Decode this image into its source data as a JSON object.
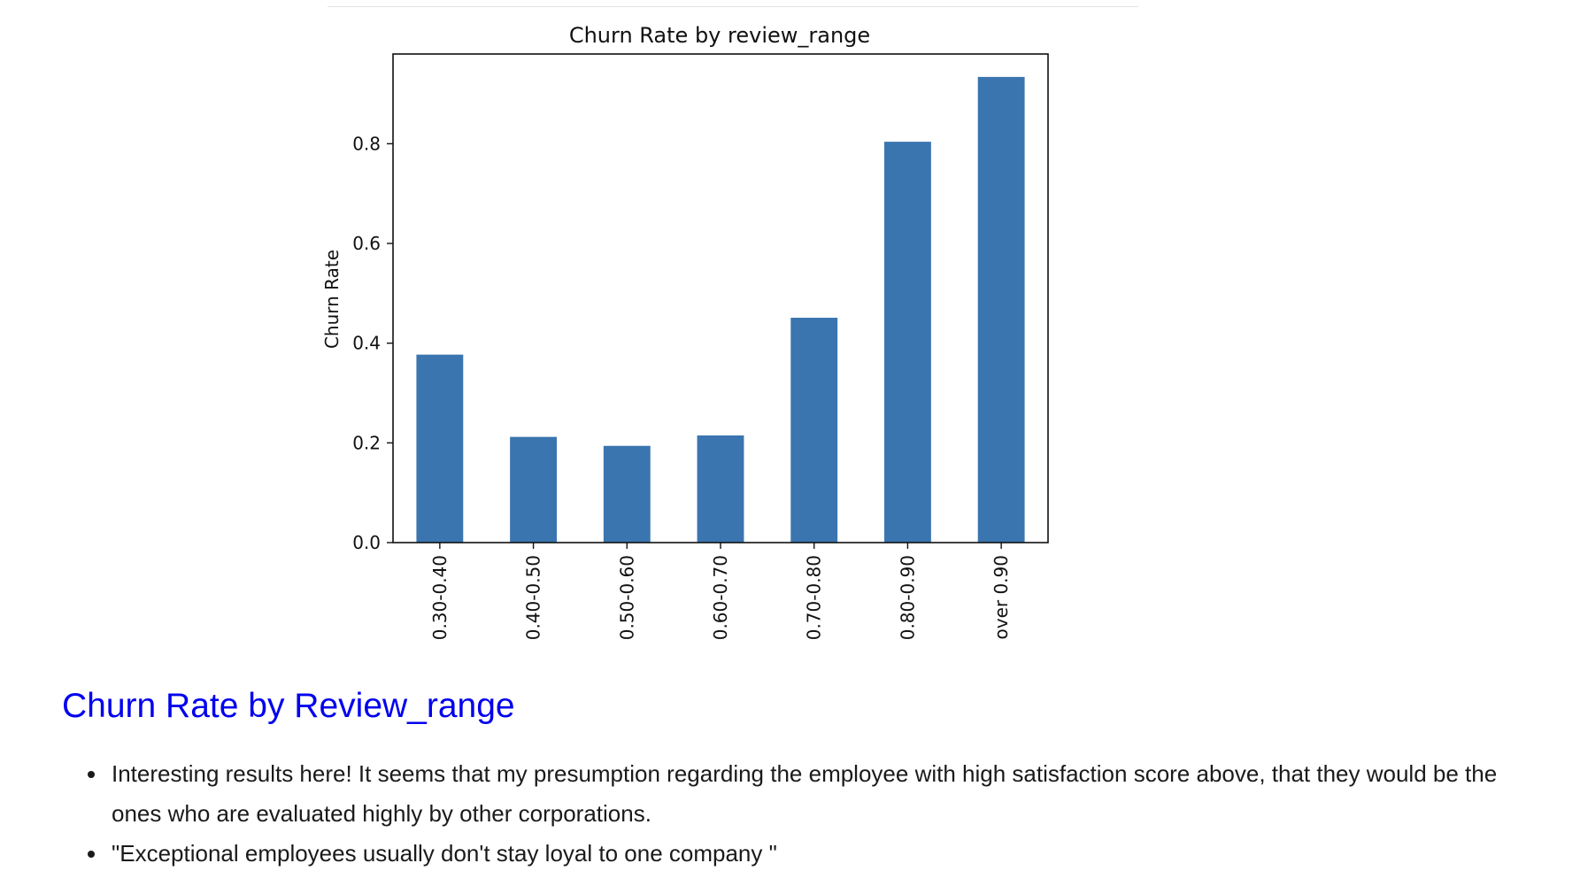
{
  "chart_data": {
    "type": "bar",
    "title": "Churn Rate by review_range",
    "xlabel": "",
    "ylabel": "Churn Rate",
    "categories": [
      "0.30-0.40",
      "0.40-0.50",
      "0.50-0.60",
      "0.60-0.70",
      "0.70-0.80",
      "0.80-0.90",
      "over 0.90"
    ],
    "values": [
      0.377,
      0.212,
      0.194,
      0.215,
      0.451,
      0.804,
      0.934
    ],
    "ylim": [
      0,
      0.98
    ],
    "yticks": [
      0.0,
      0.2,
      0.4,
      0.6,
      0.8
    ],
    "ytick_labels": [
      "0.0",
      "0.2",
      "0.4",
      "0.6",
      "0.8"
    ],
    "bar_color": "#3a75af",
    "grid": false,
    "legend": "none"
  },
  "section": {
    "heading": "Churn Rate by Review_range",
    "heading_color": "#0000ee"
  },
  "notes": [
    "Interesting results here! It seems that my presumption regarding the employee with high satisfaction score above, that they would be the ones who are evaluated highly by other corporations.",
    "\"Exceptional employees usually don't stay loyal to one company \""
  ]
}
